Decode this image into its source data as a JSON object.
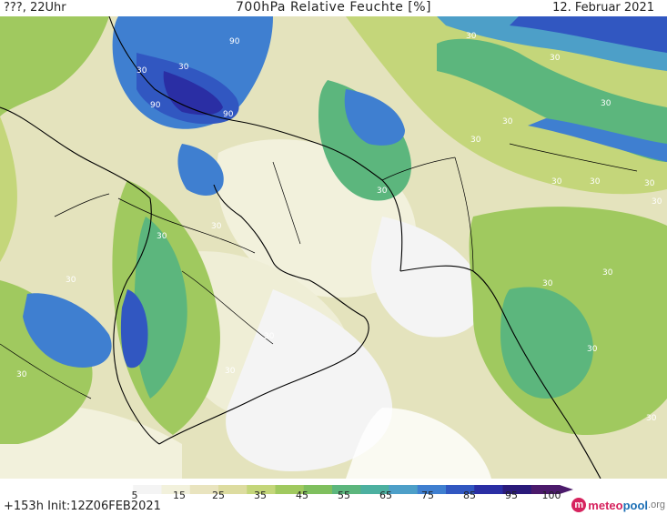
{
  "header": {
    "left": "???, 22Uhr",
    "title": "700hPa Relative Feuchte [%]",
    "date": "12. Februar 2021"
  },
  "legend": {
    "colors": [
      "#ffffff",
      "#f4f4f4",
      "#f2f1dc",
      "#e9e4bf",
      "#dddca0",
      "#c4d67a",
      "#a0c95f",
      "#7fbf5e",
      "#5cb67d",
      "#4cb0a0",
      "#4d9fc8",
      "#3f7fd0",
      "#3157c1",
      "#2a2ea4",
      "#2a1a7a",
      "#4b1a6b"
    ],
    "labels": [
      "5",
      "15",
      "25",
      "35",
      "45",
      "55",
      "65",
      "75",
      "85",
      "95",
      "100"
    ]
  },
  "map": {
    "region": "Middle East / Arabian Peninsula / Iran / South Asia",
    "contour_labels": [
      {
        "text": "90"
      },
      {
        "text": "90"
      },
      {
        "text": "90"
      },
      {
        "text": "30"
      },
      {
        "text": "30"
      },
      {
        "text": "30"
      },
      {
        "text": "30"
      },
      {
        "text": "30"
      },
      {
        "text": "30"
      },
      {
        "text": "30"
      },
      {
        "text": "30"
      },
      {
        "text": "30"
      },
      {
        "text": "30"
      },
      {
        "text": "30"
      },
      {
        "text": "30"
      },
      {
        "text": "30"
      },
      {
        "text": "30"
      },
      {
        "text": "30"
      },
      {
        "text": "30"
      },
      {
        "text": "30"
      },
      {
        "text": "30"
      },
      {
        "text": "30"
      },
      {
        "text": "30"
      },
      {
        "text": "30"
      },
      {
        "text": "30"
      }
    ]
  },
  "footer": {
    "run": "+153h  Init:12Z06FEB2021"
  },
  "brand": {
    "logo_letter": "m",
    "part1": "meteo",
    "part2": "pool",
    "part3": ".org"
  }
}
